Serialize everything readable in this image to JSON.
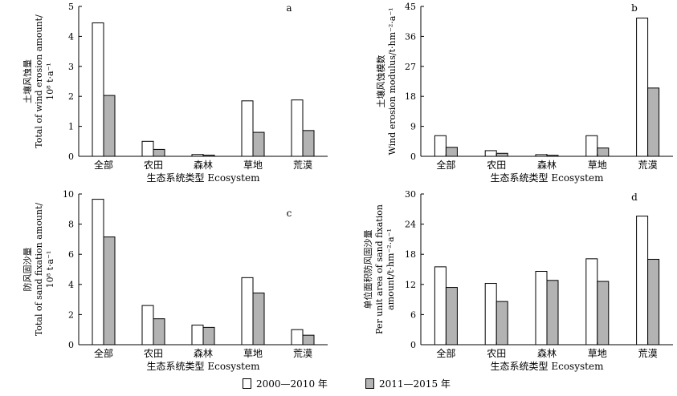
{
  "chart_data": [
    {
      "type": "bar",
      "panel_label": "a",
      "categories": [
        "全部",
        "农田",
        "森林",
        "草地",
        "荒漠"
      ],
      "series": [
        {
          "name": "2000—2010 年",
          "values": [
            4.45,
            0.5,
            0.06,
            1.85,
            1.88
          ]
        },
        {
          "name": "2011—2015 年",
          "values": [
            2.03,
            0.23,
            0.04,
            0.8,
            0.86
          ]
        }
      ],
      "ylim": [
        0,
        5
      ],
      "yticks": [
        0,
        1,
        2,
        3,
        4,
        5
      ],
      "ylabel_lines": [
        "土壤风蚀量",
        "Total of wind erosion amount/",
        "10⁸ t·a⁻¹"
      ],
      "xlabel": "生态系统类型 Ecosystem",
      "grid": false,
      "legend": "bottom"
    },
    {
      "type": "bar",
      "panel_label": "b",
      "categories": [
        "全部",
        "农田",
        "森林",
        "草地",
        "荒漠"
      ],
      "series": [
        {
          "name": "2000—2010 年",
          "values": [
            6.2,
            1.7,
            0.5,
            6.2,
            41.5
          ]
        },
        {
          "name": "2011—2015 年",
          "values": [
            2.7,
            0.9,
            0.3,
            2.5,
            20.5
          ]
        }
      ],
      "ylim": [
        0,
        45
      ],
      "yticks": [
        0,
        9,
        18,
        27,
        36,
        45
      ],
      "ylabel_lines": [
        "土壤风蚀模数",
        "Wind erosion modulus/t·hm⁻²·a⁻¹"
      ],
      "xlabel": "生态系统类型 Ecosystem",
      "grid": false,
      "legend": "bottom"
    },
    {
      "type": "bar",
      "panel_label": "c",
      "categories": [
        "全部",
        "农田",
        "森林",
        "草地",
        "荒漠"
      ],
      "series": [
        {
          "name": "2000—2010 年",
          "values": [
            9.65,
            2.6,
            1.3,
            4.45,
            1.0
          ]
        },
        {
          "name": "2011—2015 年",
          "values": [
            7.15,
            1.72,
            1.15,
            3.43,
            0.63
          ]
        }
      ],
      "ylim": [
        0,
        10
      ],
      "yticks": [
        0,
        2,
        4,
        6,
        8,
        10
      ],
      "ylabel_lines": [
        "防风固沙量",
        "Total of sand fixation amount/",
        "10⁸ t·a⁻¹"
      ],
      "xlabel": "生态系统类型 Ecosystem",
      "grid": false,
      "legend": "bottom"
    },
    {
      "type": "bar",
      "panel_label": "d",
      "categories": [
        "全部",
        "农田",
        "森林",
        "草地",
        "荒漠"
      ],
      "series": [
        {
          "name": "2000—2010 年",
          "values": [
            15.5,
            12.2,
            14.6,
            17.1,
            25.6
          ]
        },
        {
          "name": "2011—2015 年",
          "values": [
            11.4,
            8.6,
            12.8,
            12.6,
            17.0
          ]
        }
      ],
      "ylim": [
        0,
        30
      ],
      "yticks": [
        0,
        6,
        12,
        18,
        24,
        30
      ],
      "ylabel_lines": [
        "单位面积防风固沙量",
        "Per unit area of sand fixation",
        "amount/t·hm⁻²·a⁻¹"
      ],
      "xlabel": "生态系统类型 Ecosystem",
      "grid": false,
      "legend": "bottom"
    }
  ],
  "legend": {
    "series1_label": "2000—2010 年",
    "series2_label": "2011—2015 年",
    "series1_color": "#ffffff",
    "series2_color": "#b3b3b3"
  }
}
